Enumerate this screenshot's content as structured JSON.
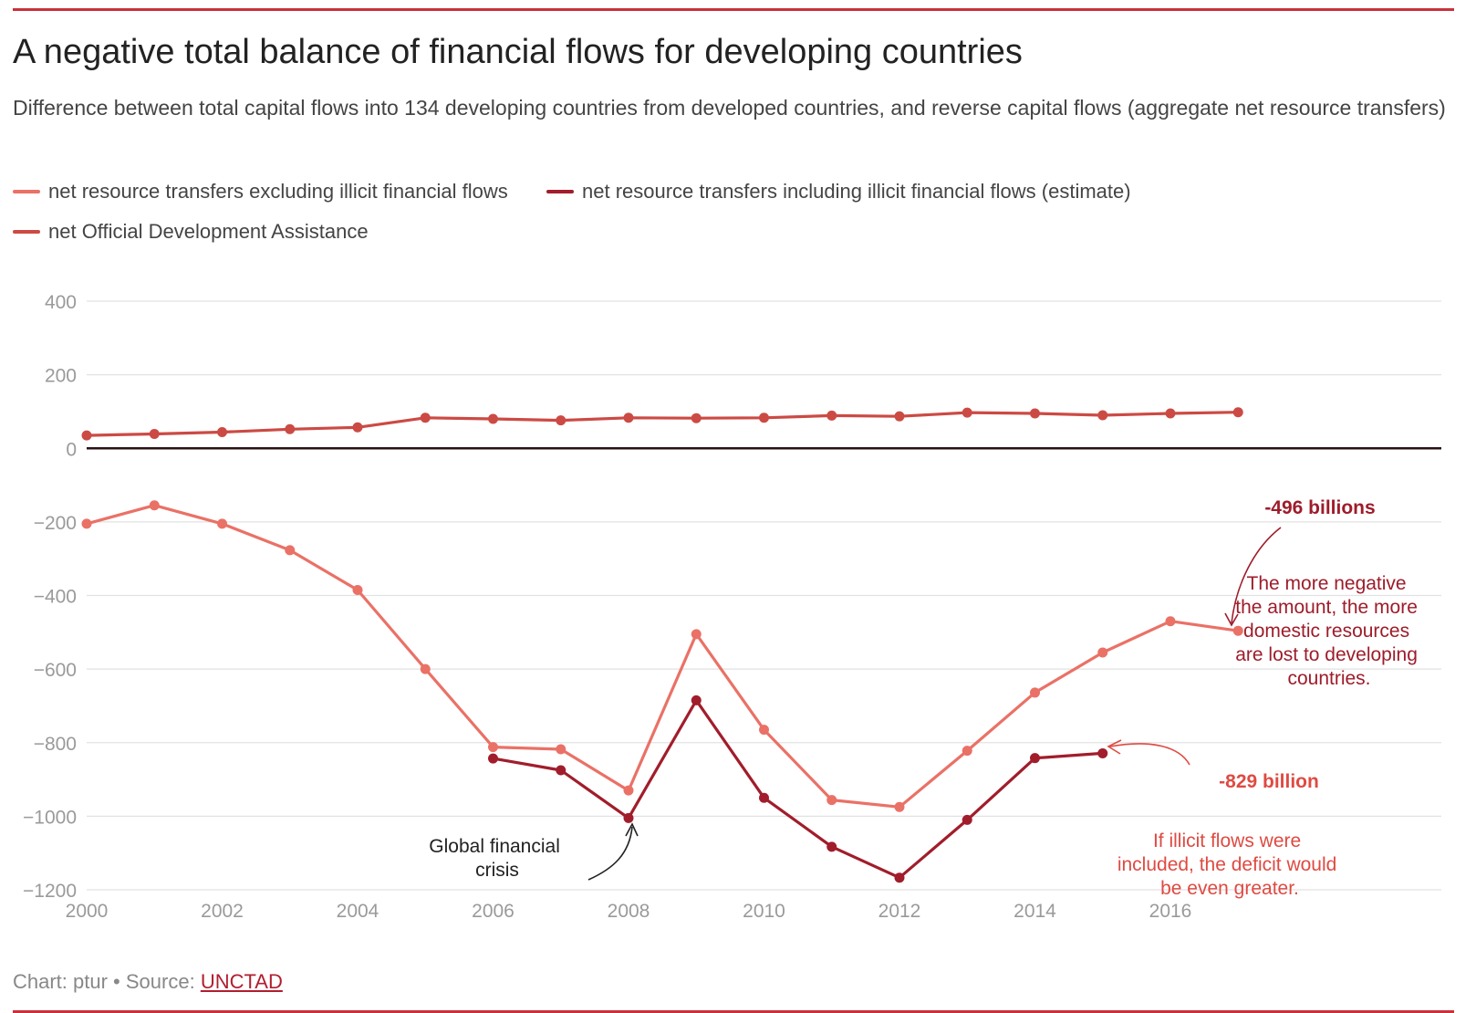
{
  "header": {
    "title": "A negative total balance of financial flows for developing countries",
    "subtitle": "Difference between total capital flows into 134 developing countries from developed countries, and reverse capital flows (aggregate net resource transfers)"
  },
  "colors": {
    "accent_rule": "#c8323c",
    "excluding": "#ea7166",
    "including": "#a11d2b",
    "oda": "#cc4a44",
    "annotation_dark": "#9e1c2a",
    "annotation_red": "#df4a42",
    "annotation_black": "#222222"
  },
  "chart_data": {
    "type": "line",
    "title": "A negative total balance of financial flows for developing countries",
    "subtitle": "Difference between total capital flows into 134 developing countries from developed countries, and reverse capital flows (aggregate net resource transfers)",
    "xlabel": "",
    "ylabel": "",
    "xlim": [
      2000,
      2020
    ],
    "ylim": [
      -1200,
      400
    ],
    "x_ticks": [
      2000,
      2002,
      2004,
      2006,
      2008,
      2010,
      2012,
      2014,
      2016
    ],
    "y_ticks": [
      400,
      200,
      0,
      -200,
      -400,
      -600,
      -800,
      -1000,
      -1200
    ],
    "y_tick_labels": [
      "400",
      "200",
      "0",
      "−200",
      "−400",
      "−600",
      "−800",
      "−1000",
      "−1200"
    ],
    "grid": true,
    "legend_position": "top-left",
    "series": [
      {
        "name": "net resource transfers excluding illicit financial flows",
        "color": "#ea7166",
        "x": [
          2000,
          2001,
          2002,
          2003,
          2004,
          2005,
          2006,
          2007,
          2008,
          2009,
          2010,
          2011,
          2012,
          2013,
          2014,
          2015,
          2016,
          2017
        ],
        "values": [
          -205,
          -155,
          -205,
          -277,
          -385,
          -600,
          -812,
          -818,
          -930,
          -505,
          -765,
          -956,
          -975,
          -822,
          -664,
          -555,
          -470,
          -496
        ]
      },
      {
        "name": "net resource transfers including illicit financial flows (estimate)",
        "color": "#a11d2b",
        "x": [
          2006,
          2007,
          2008,
          2009,
          2010,
          2011,
          2012,
          2013,
          2014,
          2015
        ],
        "values": [
          -843,
          -875,
          -1005,
          -685,
          -950,
          -1083,
          -1167,
          -1010,
          -842,
          -829
        ]
      },
      {
        "name": "net Official Development Assistance",
        "color": "#cc4a44",
        "x": [
          2000,
          2001,
          2002,
          2003,
          2004,
          2005,
          2006,
          2007,
          2008,
          2009,
          2010,
          2011,
          2012,
          2013,
          2014,
          2015,
          2016,
          2017
        ],
        "values": [
          35,
          39,
          44,
          52,
          57,
          83,
          80,
          76,
          83,
          82,
          83,
          89,
          87,
          97,
          95,
          90,
          95,
          98
        ]
      }
    ],
    "annotations": [
      {
        "text": "-496 billions",
        "color": "#9e1c2a",
        "bold": true
      },
      {
        "text": "The more negative the amount, the more domestic resources are lost to developing countries.",
        "color": "#9e1c2a"
      },
      {
        "text": "-829 billion",
        "color": "#df4a42",
        "bold": true
      },
      {
        "text": "If illicit flows were included, the deficit would be even greater.",
        "color": "#df4a42"
      },
      {
        "text": "Global financial crisis",
        "color": "#222222"
      }
    ]
  },
  "footer": {
    "credit": "Chart: ptur",
    "separator": " • ",
    "source_label": "Source: ",
    "source_link": "UNCTAD"
  }
}
